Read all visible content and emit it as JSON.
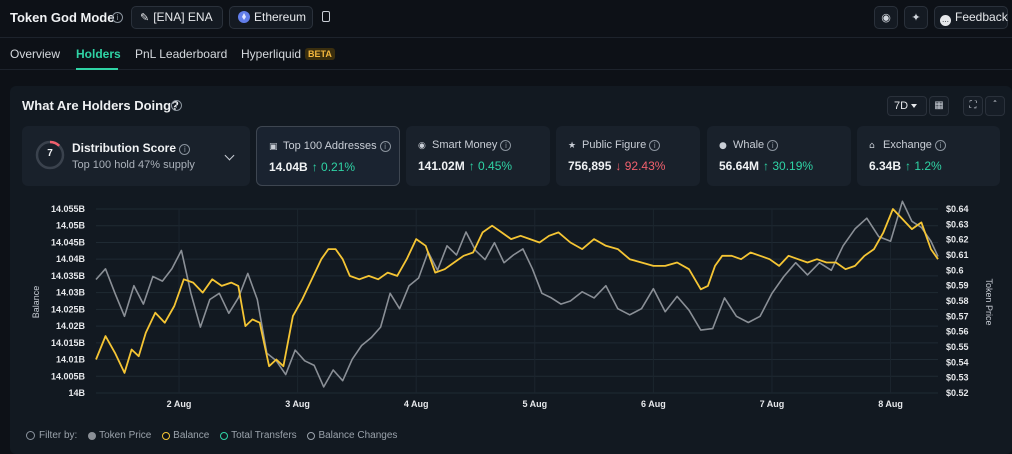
{
  "header": {
    "title": "Token God Mode",
    "token_chip": "[ENA] ENA",
    "chain_chip": "Ethereum",
    "feedback_label": "Feedback"
  },
  "tabs": [
    {
      "label": "Overview"
    },
    {
      "label": "Holders"
    },
    {
      "label": "PnL Leaderboard"
    },
    {
      "label": "Hyperliquid",
      "badge": "BETA"
    }
  ],
  "panel": {
    "title": "What Are Holders Doing?",
    "range": "7D"
  },
  "score_card": {
    "score": "7",
    "title": "Distribution Score",
    "subtitle": "Top 100 hold 47% supply"
  },
  "cards": [
    {
      "label": "Top 100 Addresses",
      "value": "14.04B",
      "change": "↑ 0.21%",
      "direction": "up",
      "icon": "wallet-icon",
      "selected": true
    },
    {
      "label": "Smart Money",
      "value": "141.02M",
      "change": "↑ 0.45%",
      "direction": "up",
      "icon": "smart-money-icon"
    },
    {
      "label": "Public Figure",
      "value": "756,895",
      "change": "↓ 92.43%",
      "direction": "down",
      "icon": "public-figure-icon"
    },
    {
      "label": "Whale",
      "value": "56.64M",
      "change": "↑ 30.19%",
      "direction": "up",
      "icon": "whale-icon"
    },
    {
      "label": "Exchange",
      "value": "6.34B",
      "change": "↑ 1.2%",
      "direction": "up",
      "icon": "exchange-icon"
    }
  ],
  "legend": {
    "filter_label": "Filter by:",
    "items": [
      {
        "label": "Token Price",
        "color": "#8a8f96",
        "active": true
      },
      {
        "label": "Balance",
        "color": "#f5c534",
        "active": true
      },
      {
        "label": "Total Transfers",
        "color": "#2fd3a5",
        "active": false
      },
      {
        "label": "Balance Changes",
        "color": "#9aa2ab",
        "active": false
      }
    ]
  },
  "chart_data": {
    "type": "line",
    "ylabel": "Balance",
    "y2label": "Token Price",
    "x_ticks": [
      "2 Aug",
      "3 Aug",
      "4 Aug",
      "5 Aug",
      "6 Aug",
      "7 Aug",
      "8 Aug"
    ],
    "y_ticks": [
      "14B",
      "14.005B",
      "14.01B",
      "14.015B",
      "14.02B",
      "14.025B",
      "14.03B",
      "14.035B",
      "14.04B",
      "14.045B",
      "14.05B",
      "14.055B"
    ],
    "y2_ticks": [
      "$0.52",
      "$0.53",
      "$0.54",
      "$0.55",
      "$0.56",
      "$0.57",
      "$0.58",
      "$0.59",
      "$0.6",
      "$0.61",
      "$0.62",
      "$0.63",
      "$0.64"
    ],
    "ylim": [
      14.0,
      14.055
    ],
    "y2lim": [
      0.52,
      0.64
    ],
    "x_range": [
      1.3,
      8.4
    ],
    "grid": true,
    "series": [
      {
        "name": "Balance",
        "color": "#f5c534",
        "axis": "left",
        "x": [
          1.3,
          1.38,
          1.46,
          1.54,
          1.6,
          1.66,
          1.72,
          1.8,
          1.88,
          1.96,
          2.04,
          2.12,
          2.2,
          2.28,
          2.36,
          2.44,
          2.5,
          2.56,
          2.62,
          2.68,
          2.76,
          2.82,
          2.88,
          2.96,
          3.04,
          3.12,
          3.2,
          3.26,
          3.32,
          3.38,
          3.44,
          3.52,
          3.6,
          3.68,
          3.76,
          3.84,
          3.92,
          4.0,
          4.08,
          4.16,
          4.24,
          4.32,
          4.4,
          4.48,
          4.56,
          4.64,
          4.72,
          4.8,
          4.88,
          4.96,
          5.04,
          5.12,
          5.2,
          5.3,
          5.4,
          5.5,
          5.6,
          5.7,
          5.8,
          5.9,
          6.0,
          6.1,
          6.2,
          6.3,
          6.4,
          6.46,
          6.52,
          6.58,
          6.66,
          6.74,
          6.82,
          6.9,
          6.98,
          7.06,
          7.14,
          7.22,
          7.3,
          7.38,
          7.46,
          7.54,
          7.62,
          7.7,
          7.78,
          7.86,
          7.94,
          8.02,
          8.1,
          8.18,
          8.26,
          8.34,
          8.4
        ],
        "y": [
          14.01,
          14.017,
          14.012,
          14.006,
          14.013,
          14.011,
          14.018,
          14.024,
          14.021,
          14.026,
          14.034,
          14.033,
          14.03,
          14.034,
          14.032,
          14.033,
          14.032,
          14.02,
          14.022,
          14.021,
          14.008,
          14.01,
          14.008,
          14.023,
          14.028,
          14.034,
          14.04,
          14.043,
          14.043,
          14.04,
          14.035,
          14.034,
          14.035,
          14.034,
          14.036,
          14.035,
          14.04,
          14.046,
          14.044,
          14.036,
          14.037,
          14.039,
          14.041,
          14.042,
          14.048,
          14.05,
          14.048,
          14.046,
          14.047,
          14.046,
          14.045,
          14.047,
          14.048,
          14.045,
          14.043,
          14.046,
          14.044,
          14.043,
          14.04,
          14.039,
          14.038,
          14.038,
          14.039,
          14.037,
          14.031,
          14.032,
          14.038,
          14.041,
          14.041,
          14.04,
          14.042,
          14.041,
          14.04,
          14.038,
          14.041,
          14.04,
          14.039,
          14.04,
          14.039,
          14.039,
          14.037,
          14.038,
          14.041,
          14.043,
          14.048,
          14.055,
          14.052,
          14.049,
          14.051,
          14.043,
          14.04
        ]
      },
      {
        "name": "Token Price",
        "color": "#8a8f96",
        "axis": "right",
        "x": [
          1.3,
          1.38,
          1.46,
          1.54,
          1.62,
          1.7,
          1.78,
          1.86,
          1.94,
          2.02,
          2.1,
          2.18,
          2.26,
          2.34,
          2.42,
          2.5,
          2.58,
          2.66,
          2.74,
          2.82,
          2.9,
          2.98,
          3.06,
          3.14,
          3.22,
          3.3,
          3.38,
          3.46,
          3.54,
          3.62,
          3.7,
          3.78,
          3.86,
          3.94,
          4.02,
          4.1,
          4.18,
          4.26,
          4.34,
          4.42,
          4.5,
          4.58,
          4.66,
          4.74,
          4.82,
          4.9,
          4.98,
          5.06,
          5.14,
          5.22,
          5.3,
          5.4,
          5.5,
          5.6,
          5.7,
          5.8,
          5.9,
          6.0,
          6.1,
          6.2,
          6.3,
          6.4,
          6.5,
          6.6,
          6.7,
          6.8,
          6.9,
          7.0,
          7.1,
          7.2,
          7.3,
          7.4,
          7.5,
          7.6,
          7.7,
          7.8,
          7.9,
          8.0,
          8.1,
          8.18,
          8.26,
          8.34,
          8.4
        ],
        "y": [
          0.594,
          0.601,
          0.585,
          0.57,
          0.59,
          0.578,
          0.596,
          0.593,
          0.601,
          0.613,
          0.585,
          0.563,
          0.581,
          0.585,
          0.572,
          0.582,
          0.598,
          0.581,
          0.546,
          0.541,
          0.532,
          0.548,
          0.541,
          0.538,
          0.524,
          0.535,
          0.528,
          0.542,
          0.551,
          0.556,
          0.563,
          0.585,
          0.575,
          0.59,
          0.595,
          0.612,
          0.6,
          0.616,
          0.61,
          0.625,
          0.613,
          0.607,
          0.618,
          0.605,
          0.61,
          0.614,
          0.601,
          0.585,
          0.582,
          0.578,
          0.58,
          0.586,
          0.582,
          0.59,
          0.575,
          0.571,
          0.575,
          0.588,
          0.573,
          0.583,
          0.574,
          0.561,
          0.562,
          0.582,
          0.57,
          0.566,
          0.57,
          0.585,
          0.596,
          0.605,
          0.597,
          0.605,
          0.6,
          0.616,
          0.627,
          0.634,
          0.622,
          0.619,
          0.645,
          0.632,
          0.628,
          0.619,
          0.609
        ]
      }
    ]
  }
}
